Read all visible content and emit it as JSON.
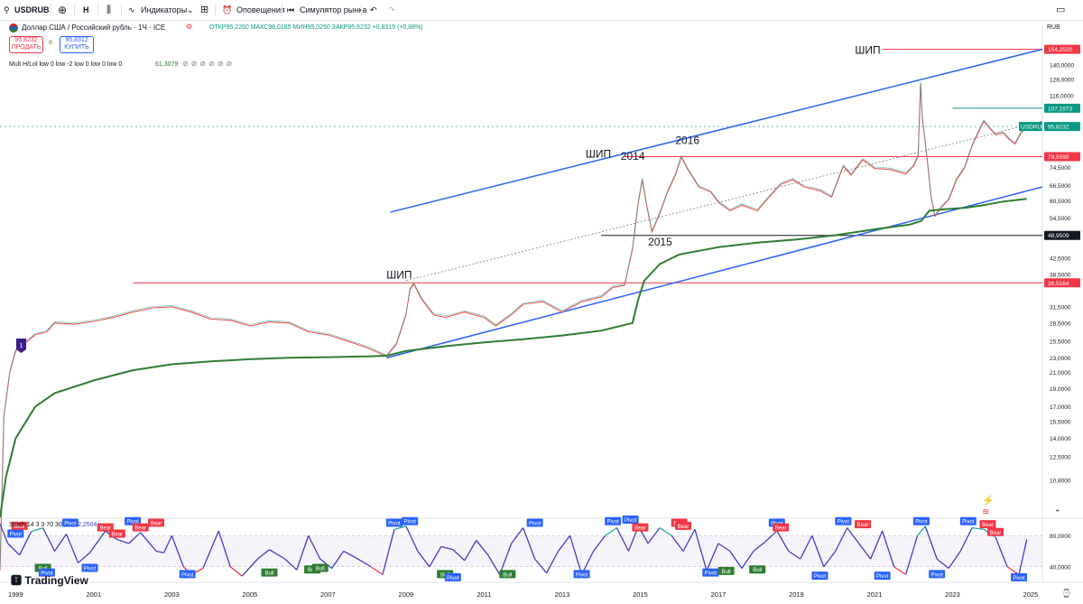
{
  "toolbar": {
    "symbol": "USDRUB",
    "interval": "H",
    "indicators_label": "Индикаторы",
    "alerts_label": "Оповещения",
    "replay_label": "Симулятор рынка"
  },
  "legend": {
    "title": "Доллар США / Российский рубль · 1Ч · ICE",
    "ohlc": "ОТКР95,2260 МАКС98,0185 МИН95,0250 ЗАКР95,8232 +0,8319 (+0,88%)",
    "sell_price": "95,8232",
    "sell_label": "ПРОДАТЬ",
    "spread": "8",
    "buy_price": "95,8312",
    "buy_label": "КУПИТЬ",
    "indicator_name": "Mult H/Lol low 0 low -2 low 0 low 0 low 0",
    "indicator_value": "61,3079",
    "osc_name": "Stoch 14 3 3 70 30",
    "osc_value": "2,2504"
  },
  "currency": "RUB",
  "branding": "TradingView",
  "colors": {
    "candles_up": "#26a69a",
    "candles_down": "#ef5350",
    "channel": "#2962ff",
    "ma": "#2e7d32",
    "level_red": "#f23645",
    "level_black": "#131722",
    "osc": "#3f3fbf"
  },
  "chart_data": {
    "type": "line",
    "title": "Доллар США / Российский рубль · 1Ч · ICE",
    "y_scale": "log",
    "ylim": [
      8.6,
      160
    ],
    "xlim": [
      1998.6,
      2025.3
    ],
    "x_ticks": [
      "1999",
      "2001",
      "2003",
      "2005",
      "2007",
      "2009",
      "2011",
      "2013",
      "2015",
      "2017",
      "2019",
      "2021",
      "2023",
      "2025"
    ],
    "y_ticks": [
      "154,2500",
      "140,0000",
      "128,0000",
      "116,0000",
      "107,1973",
      "95,8232",
      "80,0000",
      "79,5590",
      "74,5000",
      "66,5000",
      "60,5000",
      "54,5000",
      "48,9509",
      "42,5000",
      "38,5000",
      "36,5164",
      "31,5000",
      "28,5000",
      "25,5000",
      "23,0000",
      "21,0000",
      "19,0000",
      "17,0000",
      "15,5000",
      "14,0000",
      "12,5000",
      "10,8000"
    ],
    "price_tags": [
      {
        "label": "154,2500",
        "value": 154.25,
        "color": "#f23645"
      },
      {
        "label": "107,1973",
        "value": 107.2,
        "color": "#089981"
      },
      {
        "label": "95,8232",
        "value": 95.82,
        "color": "#089981",
        "symbol": "USDRUB"
      },
      {
        "label": "79,5590",
        "value": 79.56,
        "color": "#f23645"
      },
      {
        "label": "48,9509",
        "value": 48.95,
        "color": "#131722"
      },
      {
        "label": "36,5164",
        "value": 36.52,
        "color": "#f23645"
      }
    ],
    "price_series": [
      [
        1998.6,
        6.2
      ],
      [
        1998.7,
        16
      ],
      [
        1998.85,
        21
      ],
      [
        1999.0,
        24
      ],
      [
        1999.2,
        25
      ],
      [
        1999.5,
        26.5
      ],
      [
        1999.8,
        27
      ],
      [
        2000.0,
        28.5
      ],
      [
        2000.5,
        28.3
      ],
      [
        2001.0,
        28.8
      ],
      [
        2001.5,
        29.5
      ],
      [
        2002.0,
        30.5
      ],
      [
        2002.5,
        31.3
      ],
      [
        2003.0,
        31.5
      ],
      [
        2003.5,
        30.5
      ],
      [
        2004.0,
        29.2
      ],
      [
        2004.5,
        29
      ],
      [
        2005.0,
        28
      ],
      [
        2005.5,
        28.7
      ],
      [
        2006.0,
        28.5
      ],
      [
        2006.5,
        27
      ],
      [
        2007.0,
        26.5
      ],
      [
        2007.5,
        25.5
      ],
      [
        2008.0,
        24.5
      ],
      [
        2008.5,
        23.2
      ],
      [
        2008.75,
        25
      ],
      [
        2009.0,
        30
      ],
      [
        2009.1,
        35
      ],
      [
        2009.2,
        36.3
      ],
      [
        2009.4,
        33
      ],
      [
        2009.7,
        30
      ],
      [
        2010.0,
        29.5
      ],
      [
        2010.5,
        30.5
      ],
      [
        2011.0,
        29.5
      ],
      [
        2011.3,
        28
      ],
      [
        2011.7,
        30
      ],
      [
        2012.0,
        32
      ],
      [
        2012.5,
        32.5
      ],
      [
        2013.0,
        30.5
      ],
      [
        2013.5,
        32.5
      ],
      [
        2014.0,
        33.5
      ],
      [
        2014.3,
        35.5
      ],
      [
        2014.6,
        36
      ],
      [
        2014.8,
        45
      ],
      [
        2014.95,
        60
      ],
      [
        2015.05,
        69
      ],
      [
        2015.15,
        60
      ],
      [
        2015.3,
        50
      ],
      [
        2015.5,
        56
      ],
      [
        2015.7,
        64
      ],
      [
        2015.9,
        71
      ],
      [
        2016.05,
        79.5
      ],
      [
        2016.2,
        74
      ],
      [
        2016.5,
        66
      ],
      [
        2016.8,
        64
      ],
      [
        2017.0,
        60
      ],
      [
        2017.3,
        57
      ],
      [
        2017.6,
        59
      ],
      [
        2018.0,
        57
      ],
      [
        2018.3,
        62
      ],
      [
        2018.6,
        67
      ],
      [
        2018.9,
        69
      ],
      [
        2019.2,
        66
      ],
      [
        2019.6,
        64.5
      ],
      [
        2019.9,
        62
      ],
      [
        2020.2,
        75
      ],
      [
        2020.4,
        71
      ],
      [
        2020.7,
        78
      ],
      [
        2021.0,
        74
      ],
      [
        2021.4,
        73.5
      ],
      [
        2021.8,
        71.5
      ],
      [
        2022.0,
        75
      ],
      [
        2022.12,
        80
      ],
      [
        2022.18,
        125
      ],
      [
        2022.22,
        102
      ],
      [
        2022.35,
        78
      ],
      [
        2022.45,
        62
      ],
      [
        2022.55,
        55
      ],
      [
        2022.7,
        58
      ],
      [
        2022.9,
        61
      ],
      [
        2023.1,
        69
      ],
      [
        2023.3,
        74
      ],
      [
        2023.5,
        85
      ],
      [
        2023.65,
        92
      ],
      [
        2023.8,
        99
      ],
      [
        2023.9,
        96
      ],
      [
        2024.1,
        91
      ],
      [
        2024.3,
        92
      ],
      [
        2024.45,
        88.5
      ],
      [
        2024.6,
        86
      ],
      [
        2024.75,
        92
      ],
      [
        2024.9,
        95.8
      ]
    ],
    "ma_series": [
      [
        1998.6,
        8.6
      ],
      [
        1998.75,
        11
      ],
      [
        1999.0,
        14
      ],
      [
        1999.5,
        17
      ],
      [
        2000.0,
        18.5
      ],
      [
        2001.0,
        20
      ],
      [
        2002.0,
        21.3
      ],
      [
        2003.0,
        22.1
      ],
      [
        2004.0,
        22.5
      ],
      [
        2005.0,
        22.8
      ],
      [
        2006.0,
        23
      ],
      [
        2007.0,
        23.1
      ],
      [
        2008.0,
        23.2
      ],
      [
        2008.5,
        23.3
      ],
      [
        2009.0,
        24
      ],
      [
        2010.0,
        24.7
      ],
      [
        2011.0,
        25.3
      ],
      [
        2012.0,
        25.8
      ],
      [
        2013.0,
        26.4
      ],
      [
        2014.0,
        27.2
      ],
      [
        2014.8,
        28.5
      ],
      [
        2014.95,
        33
      ],
      [
        2015.1,
        37
      ],
      [
        2015.5,
        41
      ],
      [
        2016.0,
        43.5
      ],
      [
        2017.0,
        45.5
      ],
      [
        2018.0,
        46.8
      ],
      [
        2019.0,
        47.7
      ],
      [
        2020.0,
        49
      ],
      [
        2021.0,
        50.8
      ],
      [
        2021.9,
        52.3
      ],
      [
        2022.2,
        53.5
      ],
      [
        2022.4,
        57
      ],
      [
        2022.8,
        57.5
      ],
      [
        2023.3,
        58
      ],
      [
        2023.8,
        59
      ],
      [
        2024.3,
        60.3
      ],
      [
        2024.9,
        61.3
      ]
    ],
    "channel_upper": [
      [
        2008.6,
        56.5
      ],
      [
        2025.3,
        154.25
      ]
    ],
    "channel_lower": [
      [
        2008.5,
        23
      ],
      [
        2025.3,
        66
      ]
    ],
    "midline": [
      [
        2009.0,
        37
      ],
      [
        2025.3,
        99
      ]
    ],
    "hlines": [
      {
        "value": 154.25,
        "from": 2021.2,
        "to": 2025.3,
        "color": "#f23645"
      },
      {
        "value": 107.2,
        "from": 2023.0,
        "to": 2025.3,
        "color": "#089981"
      },
      {
        "value": 79.56,
        "from": 2014.6,
        "to": 2025.3,
        "color": "#f23645"
      },
      {
        "value": 48.95,
        "from": 2014.0,
        "to": 2025.3,
        "color": "#131722"
      },
      {
        "value": 36.52,
        "from": 2002.0,
        "to": 2025.3,
        "color": "#f23645"
      }
    ],
    "annotations": [
      {
        "text": "ШИП",
        "x": 2020.5,
        "y": 150
      },
      {
        "text": "ШИП",
        "x": 2013.6,
        "y": 79
      },
      {
        "text": "2014",
        "x": 2014.5,
        "y": 78
      },
      {
        "text": "2016",
        "x": 2015.9,
        "y": 86
      },
      {
        "text": "2015",
        "x": 2015.2,
        "y": 46
      },
      {
        "text": "ШИП",
        "x": 2008.5,
        "y": 37.5
      }
    ],
    "osc_ylim": [
      20,
      100
    ],
    "osc_ticks": [
      "80,0000",
      "40,0000"
    ],
    "osc_series": [
      [
        1998.6,
        95
      ],
      [
        1998.8,
        70
      ],
      [
        1999.1,
        55
      ],
      [
        1999.4,
        85
      ],
      [
        1999.7,
        90
      ],
      [
        2000.0,
        60
      ],
      [
        2000.3,
        82
      ],
      [
        2000.6,
        45
      ],
      [
        2000.9,
        58
      ],
      [
        2001.3,
        86
      ],
      [
        2001.6,
        75
      ],
      [
        2001.9,
        70
      ],
      [
        2002.2,
        84
      ],
      [
        2002.6,
        60
      ],
      [
        2002.8,
        58
      ],
      [
        2003.0,
        80
      ],
      [
        2003.3,
        40
      ],
      [
        2003.5,
        30
      ],
      [
        2003.8,
        38
      ],
      [
        2004.2,
        86
      ],
      [
        2004.5,
        40
      ],
      [
        2004.8,
        28
      ],
      [
        2005.2,
        50
      ],
      [
        2005.5,
        62
      ],
      [
        2005.9,
        50
      ],
      [
        2006.2,
        36
      ],
      [
        2006.5,
        80
      ],
      [
        2006.8,
        50
      ],
      [
        2007.1,
        38
      ],
      [
        2007.4,
        60
      ],
      [
        2007.7,
        52
      ],
      [
        2008.1,
        40
      ],
      [
        2008.4,
        30
      ],
      [
        2008.7,
        88
      ],
      [
        2009.0,
        92
      ],
      [
        2009.3,
        60
      ],
      [
        2009.6,
        40
      ],
      [
        2009.9,
        66
      ],
      [
        2010.2,
        62
      ],
      [
        2010.5,
        48
      ],
      [
        2010.8,
        74
      ],
      [
        2011.1,
        55
      ],
      [
        2011.4,
        30
      ],
      [
        2011.7,
        70
      ],
      [
        2012.0,
        90
      ],
      [
        2012.3,
        50
      ],
      [
        2012.6,
        32
      ],
      [
        2012.9,
        60
      ],
      [
        2013.2,
        80
      ],
      [
        2013.5,
        30
      ],
      [
        2013.8,
        60
      ],
      [
        2014.1,
        80
      ],
      [
        2014.4,
        90
      ],
      [
        2014.7,
        60
      ],
      [
        2014.95,
        92
      ],
      [
        2015.2,
        70
      ],
      [
        2015.5,
        90
      ],
      [
        2015.8,
        80
      ],
      [
        2016.1,
        60
      ],
      [
        2016.4,
        88
      ],
      [
        2016.7,
        35
      ],
      [
        2017.0,
        70
      ],
      [
        2017.3,
        60
      ],
      [
        2017.6,
        38
      ],
      [
        2017.9,
        60
      ],
      [
        2018.2,
        72
      ],
      [
        2018.5,
        86
      ],
      [
        2018.8,
        60
      ],
      [
        2019.1,
        50
      ],
      [
        2019.4,
        80
      ],
      [
        2019.7,
        40
      ],
      [
        2020.0,
        60
      ],
      [
        2020.3,
        90
      ],
      [
        2020.6,
        70
      ],
      [
        2020.9,
        50
      ],
      [
        2021.2,
        86
      ],
      [
        2021.5,
        40
      ],
      [
        2021.8,
        30
      ],
      [
        2022.1,
        80
      ],
      [
        2022.3,
        92
      ],
      [
        2022.6,
        50
      ],
      [
        2022.9,
        38
      ],
      [
        2023.2,
        60
      ],
      [
        2023.5,
        90
      ],
      [
        2023.8,
        88
      ],
      [
        2024.1,
        78
      ],
      [
        2024.4,
        40
      ],
      [
        2024.7,
        30
      ],
      [
        2024.9,
        75
      ]
    ],
    "osc_markers": [
      {
        "label": "Pivot",
        "kind": "pivot",
        "x": 1999.0,
        "y": 82
      },
      {
        "label": "Bear",
        "kind": "bear",
        "x": 1999.1,
        "y": 92
      },
      {
        "label": "Bull",
        "kind": "bull",
        "x": 1999.7,
        "y": 38
      },
      {
        "label": "Pivot",
        "kind": "pivot",
        "x": 1999.8,
        "y": 32
      },
      {
        "label": "Pivot",
        "kind": "pivot",
        "x": 2000.4,
        "y": 96
      },
      {
        "label": "Pivot",
        "kind": "pivot",
        "x": 2000.9,
        "y": 38
      },
      {
        "label": "Bear",
        "kind": "bear",
        "x": 2001.3,
        "y": 90
      },
      {
        "label": "Bear",
        "kind": "bear",
        "x": 2001.6,
        "y": 82
      },
      {
        "label": "Pivot",
        "kind": "pivot",
        "x": 2002.0,
        "y": 98
      },
      {
        "label": "Bear",
        "kind": "bear",
        "x": 2002.2,
        "y": 90
      },
      {
        "label": "Bear",
        "kind": "bear",
        "x": 2002.6,
        "y": 96
      },
      {
        "label": "Pivot",
        "kind": "pivot",
        "x": 2003.4,
        "y": 30
      },
      {
        "label": "Bull",
        "kind": "bull",
        "x": 2005.5,
        "y": 32
      },
      {
        "label": "Bull",
        "kind": "bull",
        "x": 2006.6,
        "y": 36
      },
      {
        "label": "Bull",
        "kind": "bull",
        "x": 2006.8,
        "y": 38
      },
      {
        "label": "Pivot",
        "kind": "pivot",
        "x": 2008.7,
        "y": 96
      },
      {
        "label": "Pivot",
        "kind": "pivot",
        "x": 2009.1,
        "y": 98
      },
      {
        "label": "Bull",
        "kind": "bull",
        "x": 2010.0,
        "y": 30
      },
      {
        "label": "Pivot",
        "kind": "pivot",
        "x": 2010.2,
        "y": 26
      },
      {
        "label": "Bull",
        "kind": "bull",
        "x": 2011.6,
        "y": 30
      },
      {
        "label": "Pivot",
        "kind": "pivot",
        "x": 2012.3,
        "y": 96
      },
      {
        "label": "Pivot",
        "kind": "pivot",
        "x": 2013.5,
        "y": 30
      },
      {
        "label": "Pivot",
        "kind": "pivot",
        "x": 2014.3,
        "y": 98
      },
      {
        "label": "Pivot",
        "kind": "pivot",
        "x": 2014.75,
        "y": 100
      },
      {
        "label": "Bear",
        "kind": "bear",
        "x": 2015.0,
        "y": 90
      },
      {
        "label": "Bear",
        "kind": "bear",
        "x": 2016.0,
        "y": 96
      },
      {
        "label": "Bear",
        "kind": "bear",
        "x": 2016.1,
        "y": 92
      },
      {
        "label": "Pivot",
        "kind": "pivot",
        "x": 2016.8,
        "y": 32
      },
      {
        "label": "Bull",
        "kind": "bull",
        "x": 2017.2,
        "y": 34
      },
      {
        "label": "Bull",
        "kind": "bull",
        "x": 2018.0,
        "y": 36
      },
      {
        "label": "Pivot",
        "kind": "pivot",
        "x": 2018.5,
        "y": 96
      },
      {
        "label": "Bear",
        "kind": "bear",
        "x": 2018.6,
        "y": 90
      },
      {
        "label": "Pivot",
        "kind": "pivot",
        "x": 2019.6,
        "y": 28
      },
      {
        "label": "Pivot",
        "kind": "pivot",
        "x": 2020.2,
        "y": 98
      },
      {
        "label": "Bear",
        "kind": "bear",
        "x": 2020.7,
        "y": 94
      },
      {
        "label": "Pivot",
        "kind": "pivot",
        "x": 2021.2,
        "y": 28
      },
      {
        "label": "Pivot",
        "kind": "pivot",
        "x": 2022.2,
        "y": 98
      },
      {
        "label": "Pivot",
        "kind": "pivot",
        "x": 2022.6,
        "y": 30
      },
      {
        "label": "Pivot",
        "kind": "pivot",
        "x": 2023.4,
        "y": 98
      },
      {
        "label": "Bear",
        "kind": "bear",
        "x": 2023.9,
        "y": 94
      },
      {
        "label": "Bear",
        "kind": "bear",
        "x": 2024.1,
        "y": 84
      },
      {
        "label": "Pivot",
        "kind": "pivot",
        "x": 2024.7,
        "y": 26
      }
    ]
  }
}
